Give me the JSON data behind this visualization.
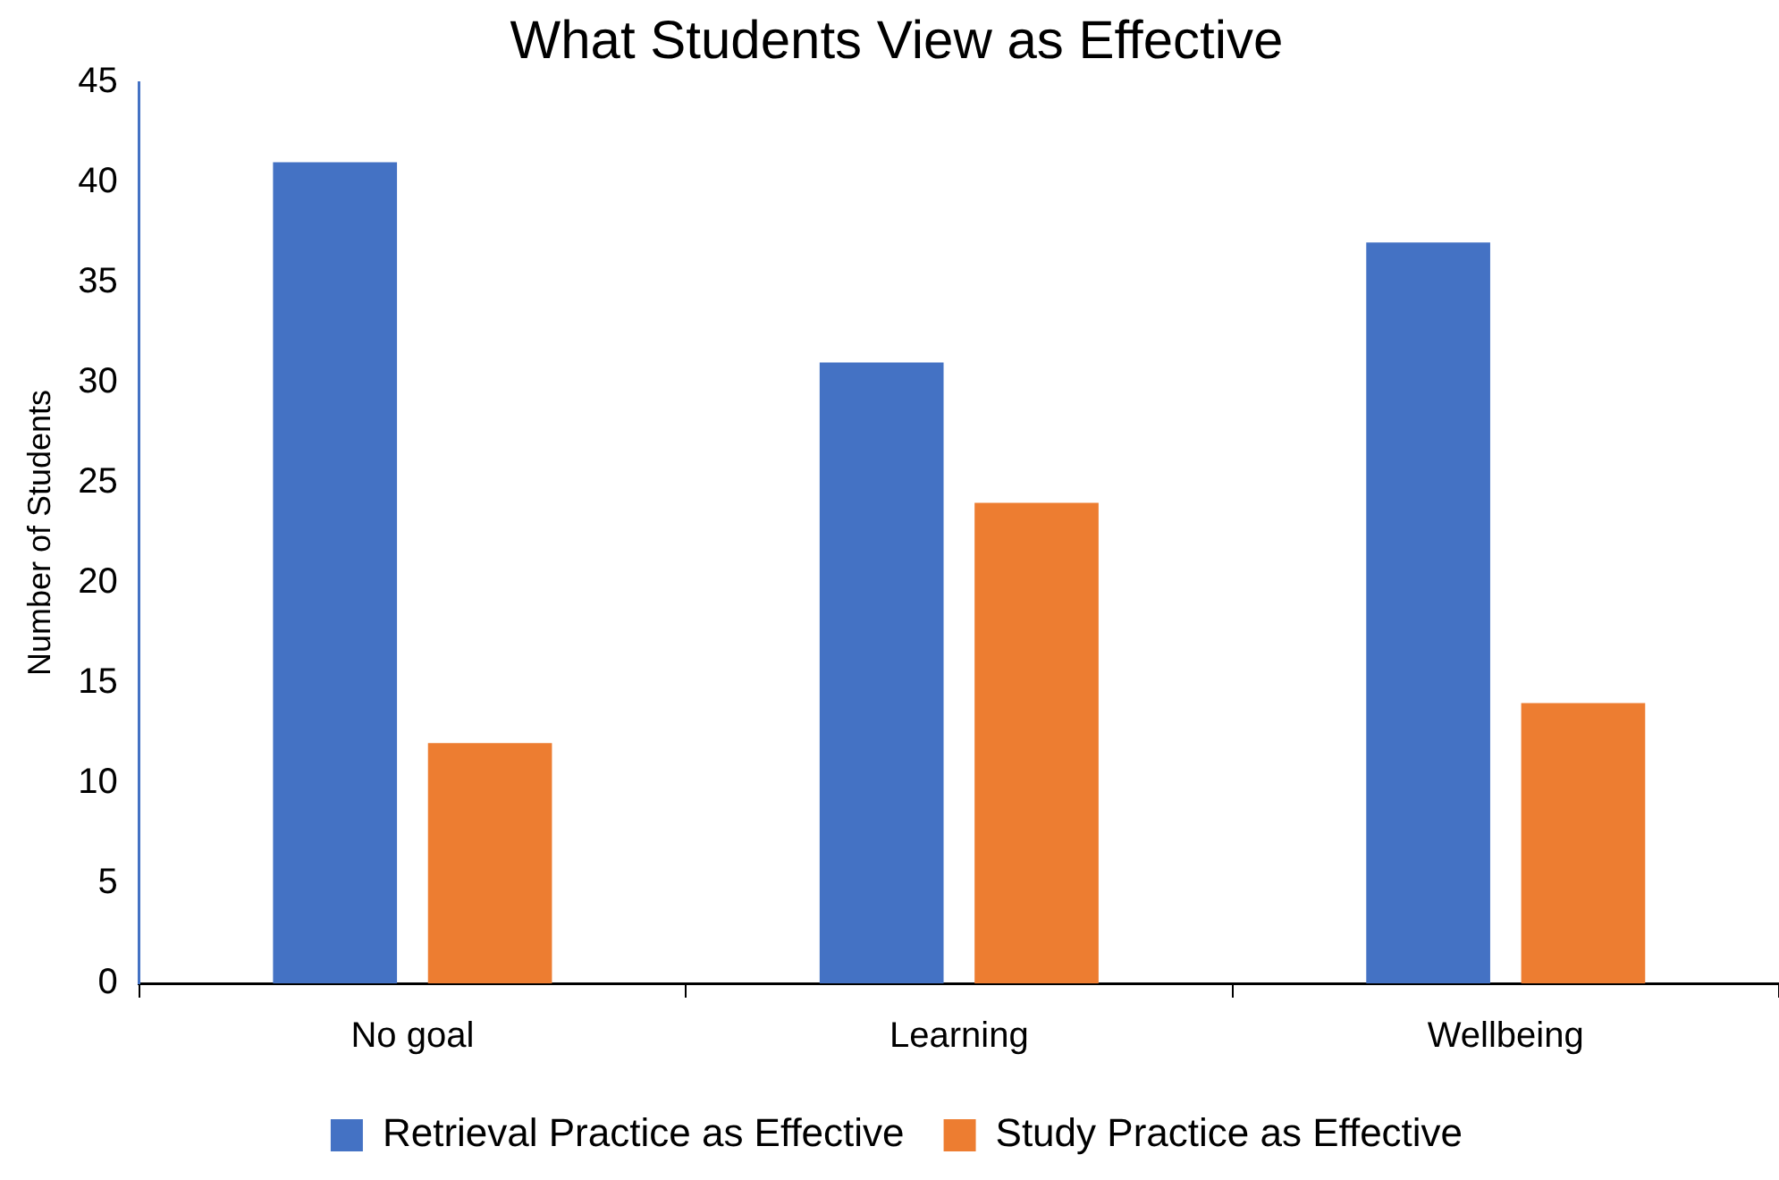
{
  "chart_data": {
    "type": "bar",
    "title": "What Students View as Effective",
    "ylabel": "Number of Students",
    "categories": [
      "No goal",
      "Learning",
      "Wellbeing"
    ],
    "series": [
      {
        "name": "Retrieval Practice as Effective",
        "color": "#4472c4",
        "values": [
          41,
          31,
          37
        ]
      },
      {
        "name": "Study Practice as Effective",
        "color": "#ed7d31",
        "values": [
          12,
          24,
          14
        ]
      }
    ],
    "ylim": [
      0,
      45
    ],
    "yticks": [
      0,
      5,
      10,
      15,
      20,
      25,
      30,
      35,
      40,
      45
    ],
    "legend": "bottom"
  }
}
